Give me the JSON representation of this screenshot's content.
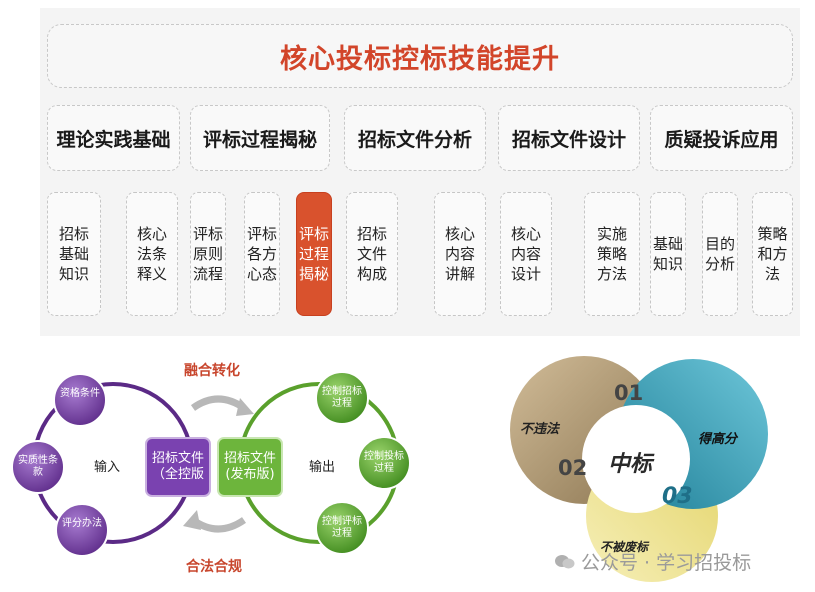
{
  "title": "核心投标控标技能提升",
  "categories": [
    {
      "label": "理论实践基础"
    },
    {
      "label": "评标过程揭秘"
    },
    {
      "label": "招标文件分析"
    },
    {
      "label": "招标文件设计"
    },
    {
      "label": "质疑投诉应用"
    }
  ],
  "leaves": [
    {
      "label": "招标基础知识",
      "highlighted": false
    },
    {
      "label": "核心法条释义",
      "highlighted": false
    },
    {
      "label": "评标原则流程",
      "highlighted": false
    },
    {
      "label": "评标各方心态",
      "highlighted": false
    },
    {
      "label": "评标过程揭秘",
      "highlighted": true
    },
    {
      "label": "招标文件构成",
      "highlighted": false
    },
    {
      "label": "核心内容讲解",
      "highlighted": false
    },
    {
      "label": "核心内容设计",
      "highlighted": false
    },
    {
      "label": "实施策略方法",
      "highlighted": false
    },
    {
      "label": "基础知识",
      "highlighted": false
    },
    {
      "label": "目的分析",
      "highlighted": false
    },
    {
      "label": "策略和方法",
      "highlighted": false
    }
  ],
  "flow": {
    "top_label": "融合转化",
    "bottom_label": "合法合规",
    "input_label": "输入",
    "output_label": "输出",
    "left_box": "招标文件（全控版",
    "right_box": "招标文件(发布版)",
    "left_bubbles": [
      "资格条件",
      "实质性条款",
      "评分办法"
    ],
    "right_bubbles": [
      "控制招标过程",
      "控制投标过程",
      "控制评标过程"
    ],
    "colors": {
      "left_ring": "#5b2a86",
      "right_ring": "#5aa02c",
      "left_bubble": "#7c4aa6",
      "right_bubble": "#6fb33b"
    }
  },
  "venn": {
    "center": "中标",
    "num1": "01",
    "num2": "02",
    "num3": "03",
    "seg1": "不违法",
    "seg2": "得高分",
    "seg3": "不被废标",
    "colors": {
      "seg1": "#b09872",
      "seg2": "#3aa6c0",
      "seg3": "#efe48e"
    }
  },
  "watermark": "公众号 · 学习招投标"
}
